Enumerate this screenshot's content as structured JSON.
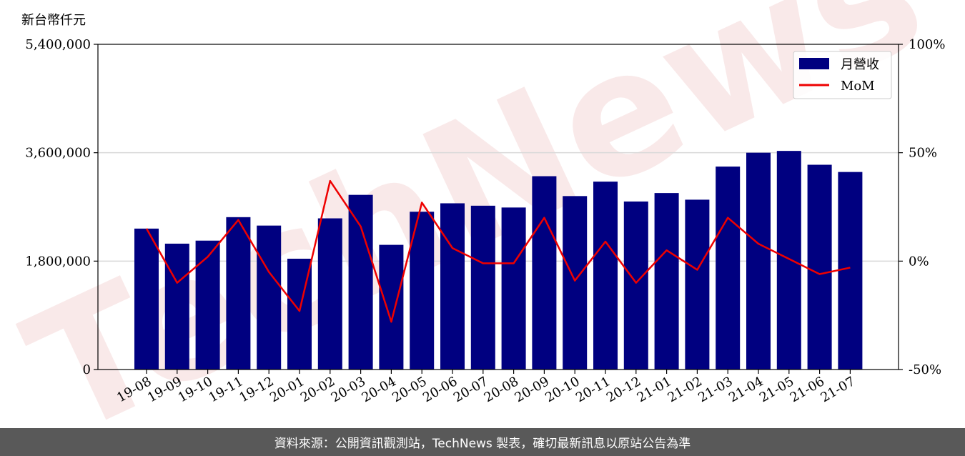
{
  "unit_label": "新台幣仟元",
  "footer_text": "資料來源：公開資訊觀測站，TechNews 製表，確切最新訊息以原站公告為準",
  "watermark": "TechNews",
  "colors": {
    "bar": "#000080",
    "line": "#ee0000",
    "grid": "#d9d9d9",
    "footer_bg": "#595959"
  },
  "chart_data": {
    "type": "bar",
    "categories": [
      "19-08",
      "19-09",
      "19-10",
      "19-11",
      "19-12",
      "20-01",
      "20-02",
      "20-03",
      "20-04",
      "20-05",
      "20-06",
      "20-07",
      "20-08",
      "20-09",
      "20-10",
      "20-11",
      "20-12",
      "21-01",
      "21-02",
      "21-03",
      "21-04",
      "21-05",
      "21-06",
      "21-07"
    ],
    "series": [
      {
        "name": "月營收",
        "type": "bar",
        "axis": "left",
        "values": [
          2340000,
          2090000,
          2140000,
          2530000,
          2390000,
          1840000,
          2510000,
          2900000,
          2070000,
          2620000,
          2760000,
          2720000,
          2690000,
          3210000,
          2880000,
          3120000,
          2790000,
          2930000,
          2820000,
          3370000,
          3600000,
          3630000,
          3400000,
          3280000
        ]
      },
      {
        "name": "MoM",
        "type": "line",
        "axis": "right",
        "values": [
          15,
          -10,
          2,
          19,
          -5,
          -23,
          37,
          16,
          -28,
          27,
          6,
          -1,
          -1,
          20,
          -9,
          9,
          -10,
          5,
          -4,
          20,
          8,
          1,
          -6,
          -3
        ]
      }
    ],
    "y_left": {
      "ylim": [
        0,
        5400000
      ],
      "ticks": [
        0,
        1800000,
        3600000,
        5400000
      ],
      "tick_labels": [
        "0",
        "1,800,000",
        "3,600,000",
        "5,400,000"
      ]
    },
    "y_right": {
      "ylim": [
        -50,
        100
      ],
      "ticks": [
        -50,
        0,
        50,
        100
      ],
      "tick_labels": [
        "-50%",
        "0%",
        "50%",
        "100%"
      ]
    },
    "grid": true,
    "legend_position": "top-right"
  }
}
